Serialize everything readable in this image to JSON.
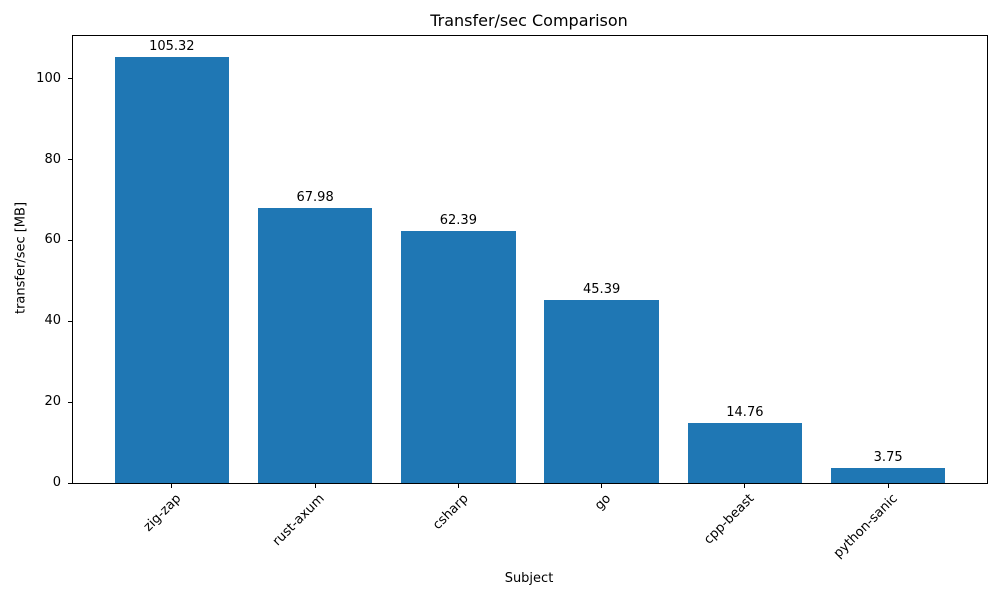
{
  "chart_data": {
    "type": "bar",
    "title": "Transfer/sec Comparison",
    "xlabel": "Subject",
    "ylabel": "transfer/sec [MB]",
    "categories": [
      "zig-zap",
      "rust-axum",
      "csharp",
      "go",
      "cpp-beast",
      "python-sanic"
    ],
    "values": [
      105.32,
      67.98,
      62.39,
      45.39,
      14.76,
      3.75
    ],
    "value_labels": [
      "105.32",
      "67.98",
      "62.39",
      "45.39",
      "14.76",
      "3.75"
    ],
    "yticks": [
      0,
      20,
      40,
      60,
      80,
      100
    ],
    "ylim": [
      0,
      110.59
    ],
    "bar_color": "#1f77b4",
    "axis_color": "#000000",
    "text_color": "#000000",
    "background_color": "#ffffff",
    "grid": false,
    "legend": "none",
    "x_tick_rotation": 45
  }
}
